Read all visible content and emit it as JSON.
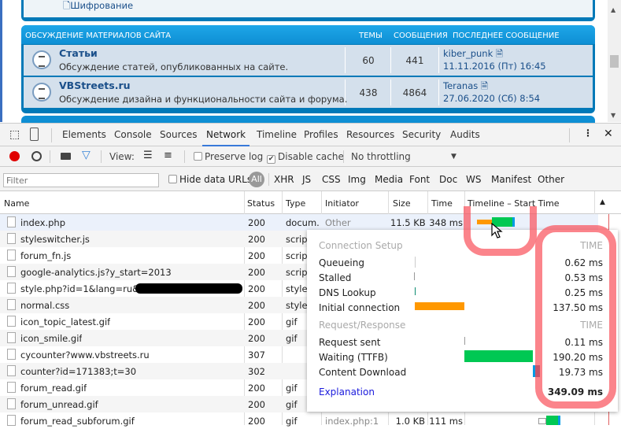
{
  "forum": {
    "prev_link": "Шифрование",
    "section_title": "ОБСУЖДЕНИЕ МАТЕРИАЛОВ САЙТА",
    "col_topics": "ТЕМЫ",
    "col_posts": "СООБЩЕНИЯ",
    "col_last": "ПОСЛЕДНЕЕ СООБЩЕНИЕ",
    "rows": [
      {
        "title": "Статьи",
        "desc": "Обсуждение статей, опубликованных на сайте.",
        "topics": "60",
        "posts": "441",
        "user": "kiber_punk",
        "date": "11.11.2016 (Пт) 16:45"
      },
      {
        "title": "VBStreets.ru",
        "desc": "Обсуждение дизайна и функциональности сайта и форума.",
        "topics": "438",
        "posts": "4864",
        "user": "Teranas",
        "date": "27.06.2020 (Сб) 8:54"
      }
    ]
  },
  "devtools": {
    "tabs": [
      "Elements",
      "Console",
      "Sources",
      "Network",
      "Timeline",
      "Profiles",
      "Resources",
      "Security",
      "Audits"
    ],
    "active_tab": "Network",
    "toolbar": {
      "view_label": "View:",
      "preserve_log": "Preserve log",
      "preserve_log_checked": false,
      "disable_cache": "Disable cache",
      "disable_cache_checked": true,
      "throttling": "No throttling"
    },
    "filter": {
      "placeholder": "Filter",
      "hide_data_urls": "Hide data URLs",
      "types": [
        "All",
        "XHR",
        "JS",
        "CSS",
        "Img",
        "Media",
        "Font",
        "Doc",
        "WS",
        "Manifest",
        "Other"
      ],
      "active_type": "All"
    },
    "columns": [
      "Name",
      "Status",
      "Type",
      "Initiator",
      "Size",
      "Time",
      "Timeline – Start Time"
    ],
    "requests": [
      {
        "name": "index.php",
        "status": "200",
        "type": "docum...",
        "initiator": "Other",
        "size": "11.5 KB",
        "time": "348 ms"
      },
      {
        "name": "styleswitcher.js",
        "status": "200",
        "type": "script"
      },
      {
        "name": "forum_fn.js",
        "status": "200",
        "type": "script"
      },
      {
        "name": "google-analytics.js?y_start=2013",
        "status": "200",
        "type": "script"
      },
      {
        "name": "style.php?id=1&lang=ru&sid=",
        "status": "200",
        "type": "styles"
      },
      {
        "name": "normal.css",
        "status": "200",
        "type": "styles"
      },
      {
        "name": "icon_topic_latest.gif",
        "status": "200",
        "type": "gif"
      },
      {
        "name": "icon_smile.gif",
        "status": "200",
        "type": "gif"
      },
      {
        "name": "cycounter?www.vbstreets.ru",
        "status": "307",
        "type": ""
      },
      {
        "name": "counter?id=171383;t=30",
        "status": "302",
        "type": ""
      },
      {
        "name": "forum_read.gif",
        "status": "200",
        "type": "gif"
      },
      {
        "name": "forum_unread.gif",
        "status": "200",
        "type": "gif"
      },
      {
        "name": "forum_read_subforum.gif",
        "status": "200",
        "type": "gif",
        "initiator": "index.php:1",
        "size": "1.0 KB",
        "time": "111 ms"
      }
    ],
    "timing": {
      "connection_setup": "Connection Setup",
      "time_label": "TIME",
      "setup": [
        {
          "label": "Queueing",
          "value": "0.62 ms"
        },
        {
          "label": "Stalled",
          "value": "0.53 ms"
        },
        {
          "label": "DNS Lookup",
          "value": "0.25 ms"
        },
        {
          "label": "Initial connection",
          "value": "137.50 ms"
        }
      ],
      "request_response": "Request/Response",
      "rr": [
        {
          "label": "Request sent",
          "value": "0.11 ms"
        },
        {
          "label": "Waiting (TTFB)",
          "value": "190.20 ms"
        },
        {
          "label": "Content Download",
          "value": "19.73 ms"
        }
      ],
      "explanation": "Explanation",
      "total": "349.09 ms"
    },
    "colors": {
      "connection": "#ff9800",
      "waiting": "#00c853",
      "download": "#039be5",
      "record": "#e00000"
    }
  }
}
